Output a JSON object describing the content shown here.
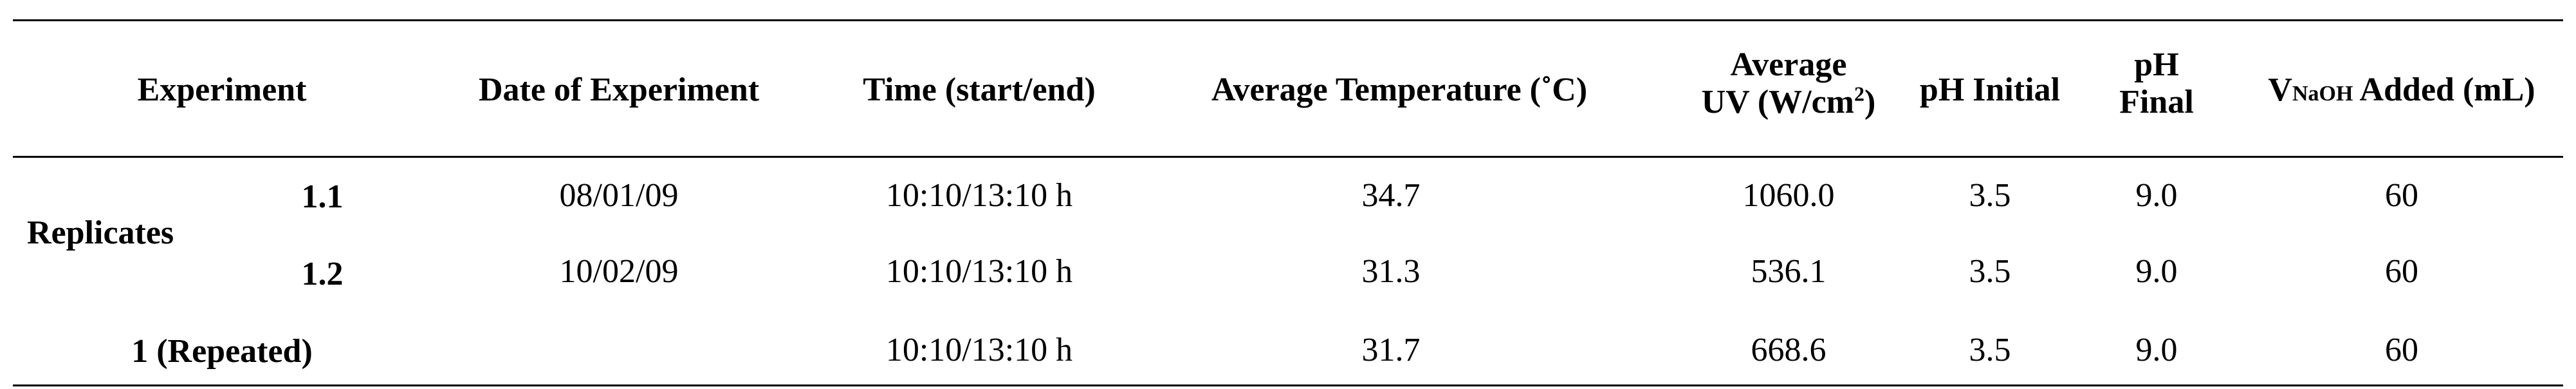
{
  "table": {
    "headers": {
      "experiment": "Experiment",
      "date": "Date of Experiment",
      "time": "Time (start/end)",
      "avg_temp": "Average Temperature (˚C)",
      "avg_uv_line1": "Average",
      "avg_uv_line2_pre": "UV (W/cm",
      "avg_uv_sup": "2",
      "avg_uv_line2_post": ")",
      "ph_initial": "pH Initial",
      "ph_final_line1": "pH",
      "ph_final_line2": "Final",
      "vnaoh_pre": "V",
      "vnaoh_sub": "NaOH",
      "vnaoh_post": " Added (mL)"
    },
    "group_label": "Replicates",
    "rows": [
      {
        "experiment": "1.1",
        "date": "08/01/09",
        "time": "10:10/13:10 h",
        "avg_temp": "34.7",
        "avg_uv": "1060.0",
        "ph_initial": "3.5",
        "ph_final": "9.0",
        "vnaoh": "60"
      },
      {
        "experiment": "1.2",
        "date": "10/02/09",
        "time": "10:10/13:10 h",
        "avg_temp": "31.3",
        "avg_uv": "536.1",
        "ph_initial": "3.5",
        "ph_final": "9.0",
        "vnaoh": "60"
      },
      {
        "experiment": "1 (Repeated)",
        "date": "",
        "time": "10:10/13:10 h",
        "avg_temp": "31.7",
        "avg_uv": "668.6",
        "ph_initial": "3.5",
        "ph_final": "9.0",
        "vnaoh": "60"
      }
    ]
  }
}
